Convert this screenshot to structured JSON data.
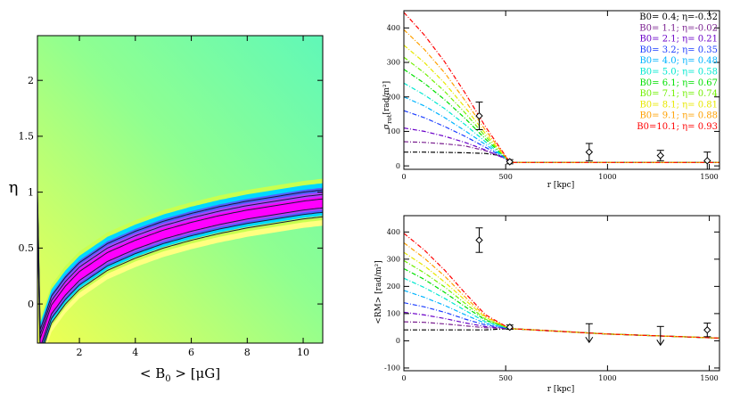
{
  "chart_data": [
    {
      "type": "heatmap",
      "xlabel": "< B",
      "xlabel_sub": "0",
      "xlabel_units": " > [μG]",
      "ylabel": "η",
      "xlim": [
        0.5,
        10.7
      ],
      "ylim": [
        -0.35,
        2.4
      ],
      "xticks": [
        2,
        4,
        6,
        8,
        10
      ],
      "xtick_labels": [
        "2",
        "4",
        "6",
        "8",
        "10"
      ],
      "yticks": [
        0,
        0.5,
        1,
        1.5,
        2
      ],
      "ytick_labels": [
        "0",
        "0.5",
        "1",
        "1.5",
        "2"
      ],
      "best_fit_ridge": [
        [
          0.6,
          -0.35
        ],
        [
          1,
          -0.05
        ],
        [
          1.5,
          0.12
        ],
        [
          2,
          0.25
        ],
        [
          3,
          0.42
        ],
        [
          4,
          0.53
        ],
        [
          5,
          0.62
        ],
        [
          6,
          0.69
        ],
        [
          7,
          0.75
        ],
        [
          8,
          0.8
        ],
        [
          9,
          0.84
        ],
        [
          10,
          0.88
        ],
        [
          10.7,
          0.9
        ]
      ],
      "contour_offsets": [
        -0.12,
        -0.08,
        -0.04,
        0.04,
        0.08,
        0.12
      ],
      "colormap": [
        "#ff00ff",
        "#b040ff",
        "#5060ff",
        "#00d8ff",
        "#40ffb0",
        "#c8ff50",
        "#ffff80"
      ]
    },
    {
      "type": "line",
      "ylabel": "σ",
      "ylabel_sub": "rot",
      "ylabel_units": "[rad/m²]",
      "xlabel": "r [kpc]",
      "xlim": [
        0,
        1550
      ],
      "ylim": [
        -10,
        450
      ],
      "xticks": [
        0,
        500,
        1000,
        1500
      ],
      "xtick_labels": [
        "0",
        "500",
        "1000",
        "1500"
      ],
      "yticks": [
        0,
        100,
        200,
        300,
        400
      ],
      "ytick_labels": [
        "0",
        "100",
        "200",
        "300",
        "400"
      ],
      "series": [
        {
          "name": "B0= 0.4; η=-0.32",
          "color": "#000000",
          "values": [
            [
              0,
              40
            ],
            [
              100,
              40
            ],
            [
              200,
              39
            ],
            [
              300,
              38
            ],
            [
              400,
              36
            ],
            [
              500,
              28
            ],
            [
              520,
              10
            ],
            [
              1550,
              10
            ]
          ]
        },
        {
          "name": "B0= 1.1; η=-0.02",
          "color": "#7a1f8f",
          "values": [
            [
              0,
              70
            ],
            [
              100,
              68
            ],
            [
              200,
              64
            ],
            [
              300,
              58
            ],
            [
              400,
              44
            ],
            [
              500,
              22
            ],
            [
              520,
              10
            ],
            [
              1550,
              10
            ]
          ]
        },
        {
          "name": "B0= 2.1; η= 0.21",
          "color": "#6a00c8",
          "values": [
            [
              0,
              110
            ],
            [
              100,
              100
            ],
            [
              200,
              86
            ],
            [
              300,
              68
            ],
            [
              400,
              46
            ],
            [
              500,
              20
            ],
            [
              520,
              10
            ],
            [
              1550,
              10
            ]
          ]
        },
        {
          "name": "B0= 3.2; η= 0.35",
          "color": "#1a3cff",
          "values": [
            [
              0,
              160
            ],
            [
              100,
              140
            ],
            [
              200,
              114
            ],
            [
              300,
              86
            ],
            [
              400,
              54
            ],
            [
              500,
              22
            ],
            [
              520,
              10
            ],
            [
              1550,
              10
            ]
          ]
        },
        {
          "name": "B0= 4.0; η= 0.48",
          "color": "#00b4ff",
          "values": [
            [
              0,
              200
            ],
            [
              100,
              174
            ],
            [
              200,
              140
            ],
            [
              300,
              102
            ],
            [
              400,
              62
            ],
            [
              500,
              22
            ],
            [
              520,
              10
            ],
            [
              1550,
              10
            ]
          ]
        },
        {
          "name": "B0= 5.0; η= 0.58",
          "color": "#00e8d0",
          "values": [
            [
              0,
              240
            ],
            [
              100,
              206
            ],
            [
              200,
              166
            ],
            [
              300,
              120
            ],
            [
              400,
              70
            ],
            [
              500,
              22
            ],
            [
              520,
              10
            ],
            [
              1550,
              10
            ]
          ]
        },
        {
          "name": "B0= 6.1; η= 0.67",
          "color": "#00e000",
          "values": [
            [
              0,
              280
            ],
            [
              100,
              240
            ],
            [
              200,
              192
            ],
            [
              300,
              138
            ],
            [
              400,
              78
            ],
            [
              500,
              24
            ],
            [
              520,
              10
            ],
            [
              1550,
              10
            ]
          ]
        },
        {
          "name": "B0= 7.1; η= 0.74",
          "color": "#70f000",
          "values": [
            [
              0,
              315
            ],
            [
              100,
              270
            ],
            [
              200,
              216
            ],
            [
              300,
              154
            ],
            [
              400,
              86
            ],
            [
              500,
              24
            ],
            [
              520,
              10
            ],
            [
              1550,
              10
            ]
          ]
        },
        {
          "name": "B0= 8.1; η= 0.81",
          "color": "#e8e800",
          "values": [
            [
              0,
              350
            ],
            [
              100,
              300
            ],
            [
              200,
              240
            ],
            [
              300,
              170
            ],
            [
              400,
              94
            ],
            [
              500,
              24
            ],
            [
              520,
              10
            ],
            [
              1550,
              10
            ]
          ]
        },
        {
          "name": "B0= 9.1; η= 0.88",
          "color": "#ffa000",
          "values": [
            [
              0,
              395
            ],
            [
              100,
              338
            ],
            [
              200,
              270
            ],
            [
              300,
              190
            ],
            [
              400,
              104
            ],
            [
              500,
              26
            ],
            [
              520,
              10
            ],
            [
              1550,
              10
            ]
          ]
        },
        {
          "name": "B0=10.1; η= 0.93",
          "color": "#ff0000",
          "values": [
            [
              0,
              445
            ],
            [
              100,
              380
            ],
            [
              200,
              302
            ],
            [
              300,
              212
            ],
            [
              400,
              114
            ],
            [
              500,
              28
            ],
            [
              520,
              10
            ],
            [
              1550,
              10
            ]
          ]
        }
      ],
      "observations": [
        {
          "x": 370,
          "y": 145,
          "err": 40
        },
        {
          "x": 520,
          "y": 12,
          "err": 6
        },
        {
          "x": 910,
          "y": 40,
          "err": 25
        },
        {
          "x": 1260,
          "y": 30,
          "err": 15
        },
        {
          "x": 1490,
          "y": 15,
          "err": 25
        }
      ]
    },
    {
      "type": "line",
      "ylabel": "<RM> [rad/m²]",
      "xlabel": "r [kpc]",
      "xlim": [
        0,
        1550
      ],
      "ylim": [
        -110,
        460
      ],
      "xticks": [
        0,
        500,
        1000,
        1500
      ],
      "xtick_labels": [
        "0",
        "500",
        "1000",
        "1500"
      ],
      "yticks": [
        -100,
        0,
        100,
        200,
        300,
        400
      ],
      "ytick_labels": [
        "-100",
        "0",
        "100",
        "200",
        "300",
        "400"
      ],
      "series": [
        {
          "name": "B0= 0.4",
          "color": "#000000",
          "values": [
            [
              0,
              40
            ],
            [
              200,
              40
            ],
            [
              400,
              40
            ],
            [
              520,
              45
            ],
            [
              1000,
              25
            ],
            [
              1550,
              10
            ]
          ]
        },
        {
          "name": "B0= 1.1",
          "color": "#7a1f8f",
          "values": [
            [
              0,
              70
            ],
            [
              100,
              68
            ],
            [
              200,
              62
            ],
            [
              300,
              55
            ],
            [
              400,
              48
            ],
            [
              520,
              45
            ],
            [
              1000,
              25
            ],
            [
              1550,
              10
            ]
          ]
        },
        {
          "name": "B0= 2.1",
          "color": "#6a00c8",
          "values": [
            [
              0,
              105
            ],
            [
              100,
              95
            ],
            [
              200,
              82
            ],
            [
              300,
              66
            ],
            [
              400,
              52
            ],
            [
              520,
              45
            ],
            [
              1000,
              25
            ],
            [
              1550,
              10
            ]
          ]
        },
        {
          "name": "B0= 3.2",
          "color": "#1a3cff",
          "values": [
            [
              0,
              140
            ],
            [
              100,
              125
            ],
            [
              200,
              105
            ],
            [
              300,
              80
            ],
            [
              400,
              58
            ],
            [
              520,
              45
            ],
            [
              1000,
              25
            ],
            [
              1550,
              10
            ]
          ]
        },
        {
          "name": "B0= 4.0",
          "color": "#00b4ff",
          "values": [
            [
              0,
              185
            ],
            [
              100,
              160
            ],
            [
              200,
              130
            ],
            [
              300,
              96
            ],
            [
              400,
              64
            ],
            [
              520,
              45
            ],
            [
              1000,
              25
            ],
            [
              1550,
              10
            ]
          ]
        },
        {
          "name": "B0= 5.0",
          "color": "#00e8d0",
          "values": [
            [
              0,
              230
            ],
            [
              100,
              196
            ],
            [
              200,
              156
            ],
            [
              300,
              112
            ],
            [
              400,
              70
            ],
            [
              520,
              45
            ],
            [
              1000,
              25
            ],
            [
              1550,
              10
            ]
          ]
        },
        {
          "name": "B0= 6.1",
          "color": "#00e000",
          "values": [
            [
              0,
              265
            ],
            [
              100,
              226
            ],
            [
              200,
              178
            ],
            [
              300,
              126
            ],
            [
              400,
              76
            ],
            [
              520,
              45
            ],
            [
              1000,
              25
            ],
            [
              1550,
              10
            ]
          ]
        },
        {
          "name": "B0= 7.1",
          "color": "#70f000",
          "values": [
            [
              0,
              295
            ],
            [
              100,
              250
            ],
            [
              200,
              198
            ],
            [
              300,
              138
            ],
            [
              400,
              80
            ],
            [
              520,
              45
            ],
            [
              1000,
              25
            ],
            [
              1550,
              10
            ]
          ]
        },
        {
          "name": "B0= 8.1",
          "color": "#e8e800",
          "values": [
            [
              0,
              325
            ],
            [
              100,
              276
            ],
            [
              200,
              216
            ],
            [
              300,
              150
            ],
            [
              400,
              86
            ],
            [
              520,
              45
            ],
            [
              1000,
              25
            ],
            [
              1550,
              10
            ]
          ]
        },
        {
          "name": "B0= 9.1",
          "color": "#ffa000",
          "values": [
            [
              0,
              360
            ],
            [
              100,
              304
            ],
            [
              200,
              238
            ],
            [
              300,
              162
            ],
            [
              400,
              90
            ],
            [
              520,
              45
            ],
            [
              1000,
              25
            ],
            [
              1550,
              10
            ]
          ]
        },
        {
          "name": "B0=10.1",
          "color": "#ff0000",
          "values": [
            [
              0,
              395
            ],
            [
              100,
              334
            ],
            [
              200,
              260
            ],
            [
              300,
              176
            ],
            [
              400,
              96
            ],
            [
              520,
              45
            ],
            [
              1000,
              25
            ],
            [
              1550,
              10
            ]
          ]
        }
      ],
      "observations": [
        {
          "x": 370,
          "y": 370,
          "err": 45,
          "upper_limit": false
        },
        {
          "x": 520,
          "y": 50,
          "err": 8,
          "upper_limit": false
        },
        {
          "x": 910,
          "y": 30,
          "err": 0,
          "upper_limit": true
        },
        {
          "x": 1260,
          "y": 20,
          "err": 0,
          "upper_limit": true
        },
        {
          "x": 1490,
          "y": 40,
          "err": 25,
          "upper_limit": false
        }
      ]
    }
  ]
}
